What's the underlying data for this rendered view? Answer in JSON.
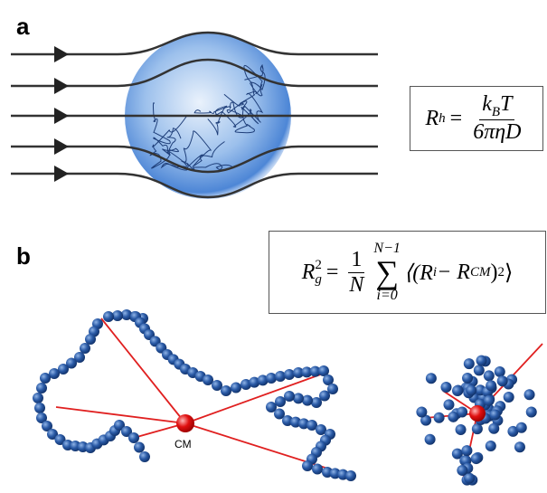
{
  "panel_a": {
    "label": "a",
    "equation": {
      "lhs": "R",
      "lhs_sub": "h",
      "eq": "=",
      "num": "k",
      "num_sub": "B",
      "num_rest": "T",
      "den": "6πηD"
    }
  },
  "panel_b": {
    "label": "b",
    "cm_label": "CM",
    "equation": {
      "lhs": "R",
      "lhs_sub": "g",
      "lhs_sup": "2",
      "eq": "=",
      "frac_num": "1",
      "frac_den": "N",
      "sum": "∑",
      "sum_top": "N−1",
      "sum_bottom": "i=0",
      "body_1": "⟨(R",
      "body_1_sub": "i",
      "body_2": " − R",
      "body_2_sub": "CM",
      "body_3": ")",
      "body_3_sup": "2",
      "body_4": "⟩"
    }
  }
}
